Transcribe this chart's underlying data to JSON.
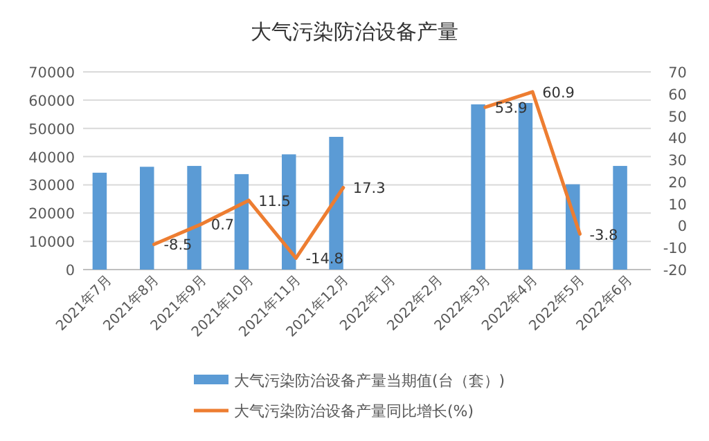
{
  "chart_data": {
    "type": "bar",
    "title": "大气污染防治设备产量",
    "categories": [
      "2021年7月",
      "2021年8月",
      "2021年9月",
      "2021年10月",
      "2021年11月",
      "2021年12月",
      "2022年1月",
      "2022年2月",
      "2022年3月",
      "2022年4月",
      "2022年5月",
      "2022年6月"
    ],
    "series": [
      {
        "name": "大气污染防治设备产量当期值(台（套）)",
        "color": "#5b9bd5",
        "values": [
          34300,
          36400,
          36700,
          33800,
          40800,
          47000,
          null,
          null,
          58500,
          59000,
          30200,
          36700
        ]
      },
      {
        "name": "大气污染防治设备产量同比增长(%)",
        "type": "line",
        "axis": "y2",
        "color": "#ed7d31",
        "values": [
          null,
          -8.5,
          0.7,
          11.5,
          -14.8,
          17.3,
          null,
          null,
          53.9,
          60.9,
          -3.8,
          null
        ],
        "value_labels": [
          null,
          "-8.5",
          "0.7",
          "11.5",
          "-14.8",
          "17.3",
          null,
          null,
          "53.9",
          "60.9",
          "-3.8",
          null
        ]
      }
    ],
    "ylim": [
      0,
      70000
    ],
    "yticks": [
      0,
      10000,
      20000,
      30000,
      40000,
      50000,
      60000,
      70000
    ],
    "y2lim": [
      -20,
      70
    ],
    "y2ticks": [
      -20,
      -10,
      0,
      10,
      20,
      30,
      40,
      50,
      60,
      70
    ],
    "grid": "y",
    "legend": "bottom",
    "marker": "none"
  }
}
